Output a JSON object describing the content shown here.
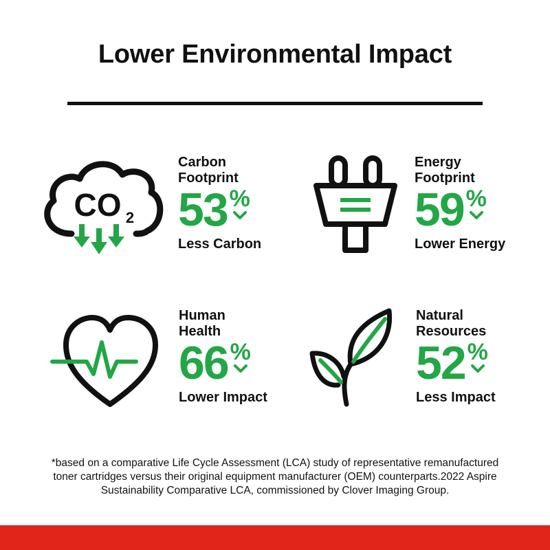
{
  "title": "Lower Environmental Impact",
  "accent_color": "#22a646",
  "footer_color": "#e1251b",
  "stats": [
    {
      "icon": "co2-cloud-icon",
      "label_lines": [
        "Carbon",
        "Footprint"
      ],
      "value": "53",
      "unit": "%",
      "trend": "down",
      "sub": "Less Carbon"
    },
    {
      "icon": "electric-plug-icon",
      "label_lines": [
        "Energy",
        "Footprint"
      ],
      "value": "59",
      "unit": "%",
      "trend": "down",
      "sub": "Lower Energy"
    },
    {
      "icon": "heart-pulse-icon",
      "label_lines": [
        "Human",
        "Health"
      ],
      "value": "66",
      "unit": "%",
      "trend": "down",
      "sub": "Lower Impact"
    },
    {
      "icon": "plant-leaves-icon",
      "label_lines": [
        "Natural",
        "Resources"
      ],
      "value": "52",
      "unit": "%",
      "trend": "down",
      "sub": "Less Impact"
    }
  ],
  "co2_icon_text": {
    "main": "CO",
    "subscript": "2"
  },
  "footnote_lines": [
    "*based on a comparative Life Cycle Assessment (LCA) study of representative remanufactured",
    "toner cartridges versus their original equipment manufacturer (OEM) counterparts.2022 Aspire",
    "Sustainability Comparative LCA, commissioned by Clover Imaging Group."
  ]
}
